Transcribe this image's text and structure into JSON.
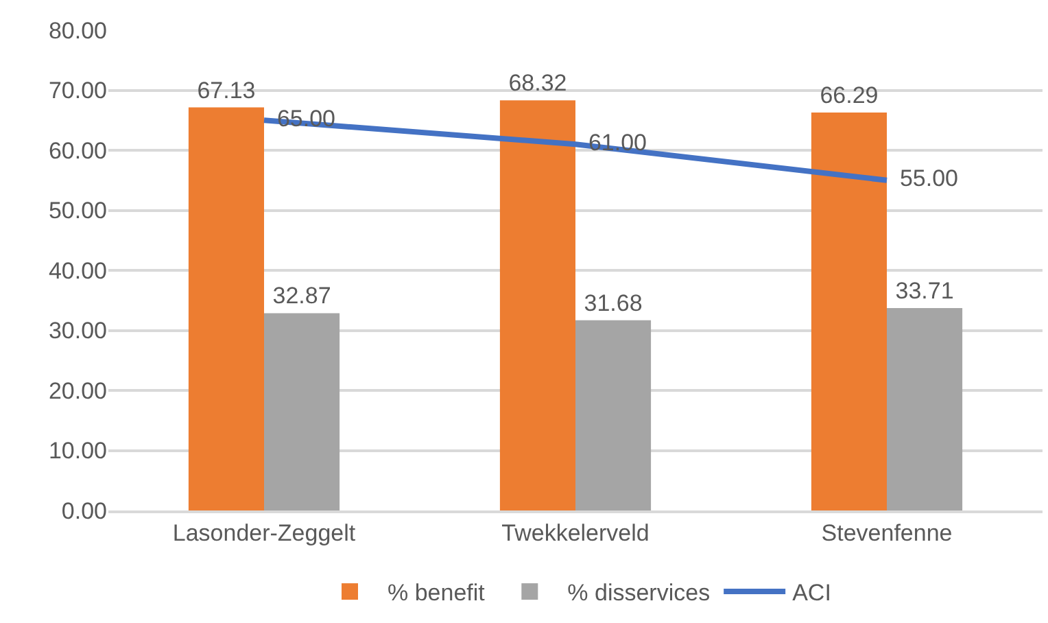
{
  "chart_data": {
    "type": "bar",
    "categories": [
      "Lasonder-Zeggelt",
      "Twekkelerveld",
      "Stevenfenne"
    ],
    "series": [
      {
        "name": "% benefit",
        "color": "#ed7d31",
        "values": [
          67.13,
          68.32,
          66.29
        ],
        "value_labels": [
          "67.13",
          "68.32",
          "66.29"
        ]
      },
      {
        "name": "% disservices",
        "color": "#a5a5a5",
        "values": [
          32.87,
          31.68,
          33.71
        ],
        "value_labels": [
          "32.87",
          "31.68",
          "33.71"
        ]
      },
      {
        "name": "ACI",
        "type": "line",
        "color": "#4472c4",
        "values": [
          65,
          61,
          55
        ],
        "value_labels": [
          "65.00",
          "61.00",
          "55.00"
        ]
      }
    ],
    "ylim": [
      0,
      80
    ],
    "yticks": [
      {
        "value": 0,
        "label": "0.00"
      },
      {
        "value": 10,
        "label": "10.00"
      },
      {
        "value": 20,
        "label": "20.00"
      },
      {
        "value": 30,
        "label": "30.00"
      },
      {
        "value": 40,
        "label": "40.00"
      },
      {
        "value": 50,
        "label": "50.00"
      },
      {
        "value": 60,
        "label": "60.00"
      },
      {
        "value": 70,
        "label": "70.00"
      },
      {
        "value": 80,
        "label": "80.00"
      }
    ],
    "grid": "y",
    "legend": "bottom",
    "marker": "none",
    "line_style": "solid"
  }
}
